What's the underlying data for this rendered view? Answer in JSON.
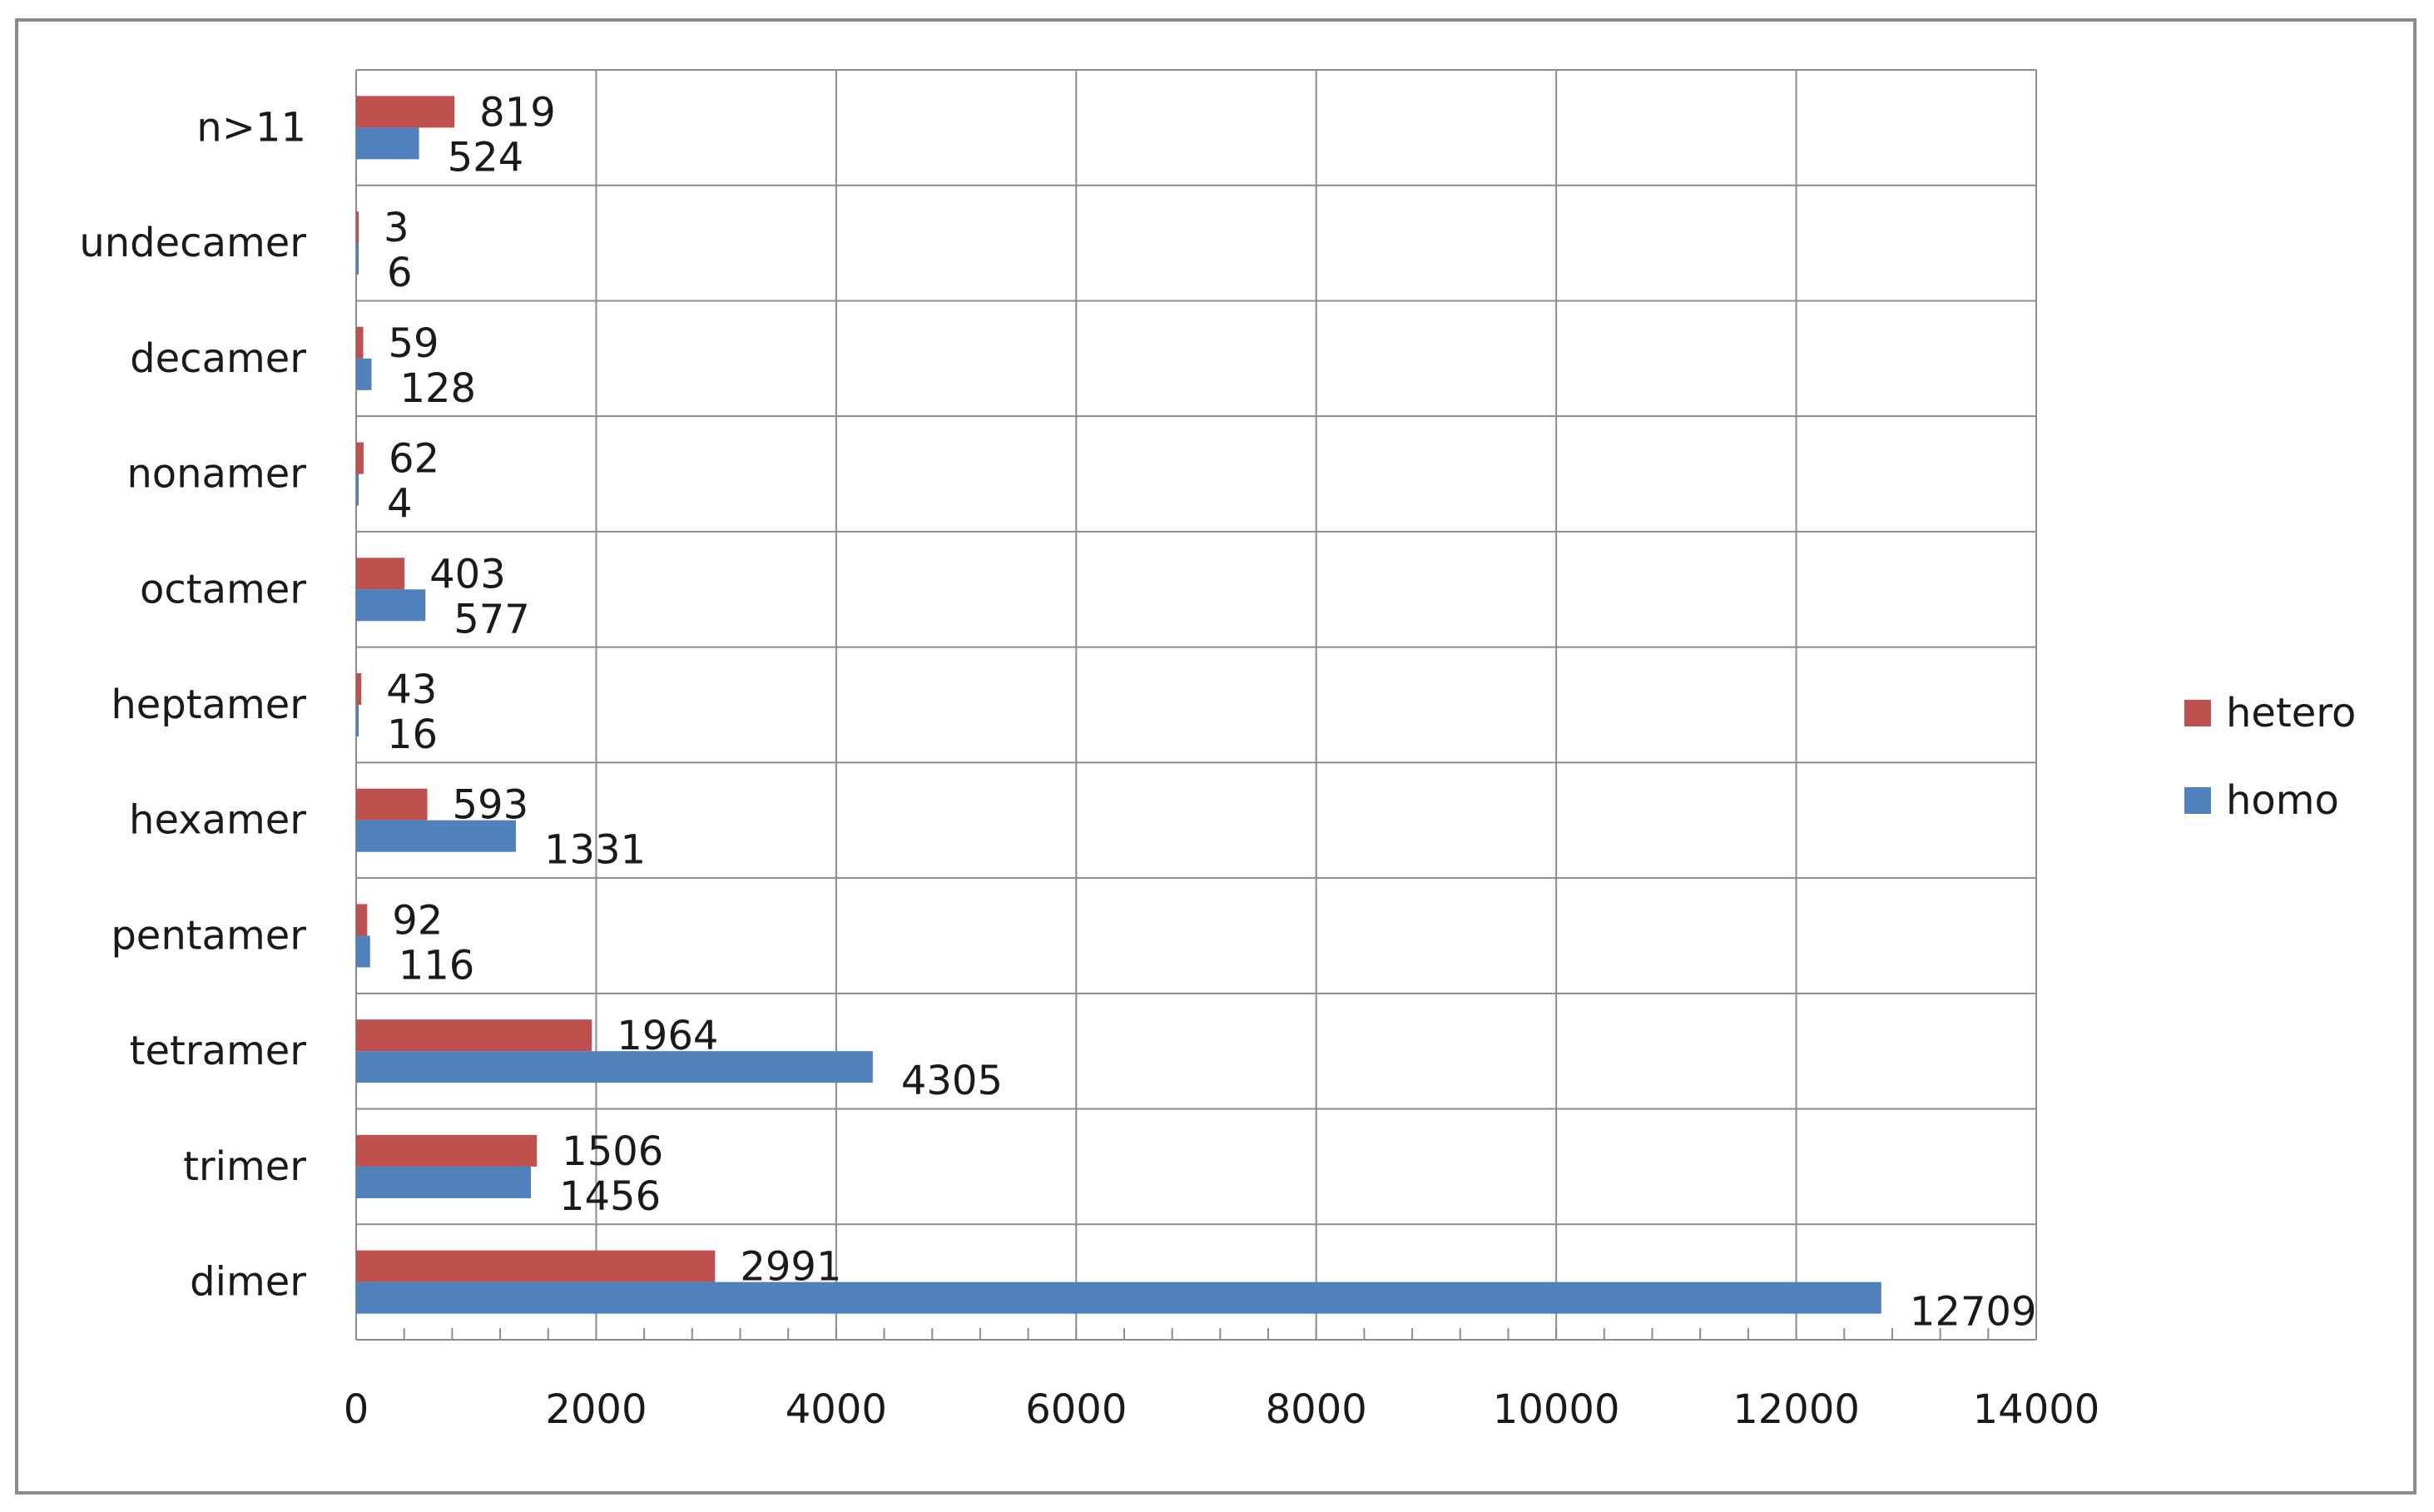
{
  "chart_data": {
    "type": "bar",
    "orientation": "horizontal",
    "categories": [
      "dimer",
      "trimer",
      "tetramer",
      "pentamer",
      "hexamer",
      "heptamer",
      "octamer",
      "nonamer",
      "decamer",
      "undecamer",
      "n>11"
    ],
    "series": [
      {
        "name": "hetero",
        "color": "#c0504d",
        "values": [
          2991,
          1506,
          1964,
          92,
          593,
          43,
          403,
          62,
          59,
          3,
          819
        ]
      },
      {
        "name": "homo",
        "color": "#4f81bd",
        "values": [
          12709,
          1456,
          4305,
          116,
          1331,
          16,
          577,
          4,
          128,
          6,
          524
        ]
      }
    ],
    "xlim": [
      0,
      14000
    ],
    "xticks": [
      "0",
      "2000",
      "4000",
      "6000",
      "8000",
      "10000",
      "12000",
      "14000"
    ],
    "title": "",
    "xlabel": "",
    "ylabel": "",
    "grid": true,
    "legend_position": "right",
    "colors": {
      "gridline": "#8c8c8c",
      "frame": "#8c8c8c"
    }
  }
}
